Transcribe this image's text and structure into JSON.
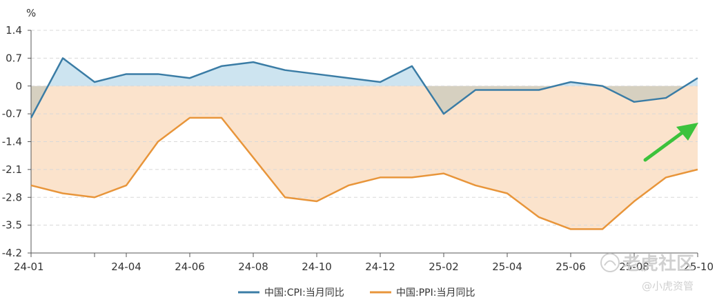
{
  "chart_data": {
    "type": "line",
    "unit_label": "%",
    "x": [
      "24-01",
      "24-02",
      "24-03",
      "24-04",
      "24-05",
      "24-06",
      "24-07",
      "24-08",
      "24-09",
      "24-10",
      "24-11",
      "24-12",
      "25-01",
      "25-02",
      "25-03",
      "25-04",
      "25-05",
      "25-06",
      "25-07",
      "25-08",
      "25-09",
      "25-10"
    ],
    "x_tick_labels": [
      "24-01",
      "24-04",
      "24-06",
      "24-08",
      "24-10",
      "24-12",
      "25-02",
      "25-04",
      "25-06",
      "25-08",
      "25-10"
    ],
    "y_ticks": [
      "1.4",
      "0.7",
      "0",
      "-0.7",
      "-1.4",
      "-2.1",
      "-2.8",
      "-3.5",
      "-4.2"
    ],
    "ylim": [
      -4.2,
      1.4
    ],
    "grid": "horizontal dashed",
    "legend_position": "bottom",
    "series": [
      {
        "name": "中国:CPI:当月同比",
        "color": "#3a7ca5",
        "fill_positive": "#cde4f0",
        "fill_negative": "#d6d0c0",
        "values": [
          -0.8,
          0.7,
          0.1,
          0.3,
          0.3,
          0.2,
          0.5,
          0.6,
          0.4,
          0.3,
          0.2,
          0.1,
          0.5,
          -0.7,
          -0.1,
          -0.1,
          -0.1,
          0.1,
          0.0,
          -0.4,
          -0.3,
          0.2
        ]
      },
      {
        "name": "中国:PPI:当月同比",
        "color": "#e8953a",
        "fill": "#fbe3cc",
        "values": [
          -2.5,
          -2.7,
          -2.8,
          -2.5,
          -1.4,
          -0.8,
          -0.8,
          -1.8,
          -2.8,
          -2.9,
          -2.5,
          -2.3,
          -2.3,
          -2.2,
          -2.5,
          -2.7,
          -3.3,
          -3.6,
          -3.6,
          -2.9,
          -2.3,
          -2.1
        ]
      }
    ],
    "annotation": {
      "type": "arrow",
      "color": "#3cc23c"
    }
  },
  "watermark": {
    "brand_text": "老虎社区",
    "sub_text": "@小虎资管",
    "icon": "tiger-logo-icon"
  }
}
